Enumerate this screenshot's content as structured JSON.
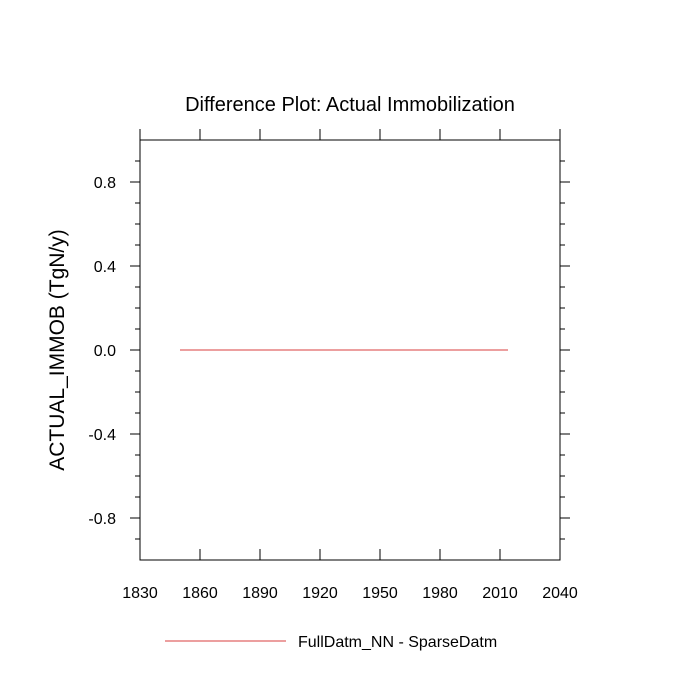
{
  "chart_data": {
    "type": "line",
    "title": "Difference Plot: Actual Immobilization",
    "xlabel": "",
    "ylabel": "ACTUAL_IMMOB  (TgN/y)",
    "xlim": [
      1830,
      2040
    ],
    "ylim": [
      -1.0,
      1.0
    ],
    "x_ticks": [
      1830,
      1860,
      1890,
      1920,
      1950,
      1980,
      2010,
      2040
    ],
    "x_tick_labels": [
      "1830",
      "1860",
      "1890",
      "1920",
      "1950",
      "1980",
      "2010",
      "2040"
    ],
    "y_ticks": [
      -0.8,
      -0.4,
      0.0,
      0.4,
      0.8
    ],
    "y_tick_labels": [
      "-0.8",
      "-0.4",
      "0.0",
      "0.4",
      "0.8"
    ],
    "grid": false,
    "legend_position": "bottom-center",
    "series": [
      {
        "name": "FullDatm_NN - SparseDatm",
        "color": "#e06666",
        "x": [
          1850,
          1900,
          1950,
          2000,
          2014
        ],
        "y": [
          0.0,
          0.0,
          0.0,
          0.0,
          0.0
        ]
      }
    ]
  }
}
